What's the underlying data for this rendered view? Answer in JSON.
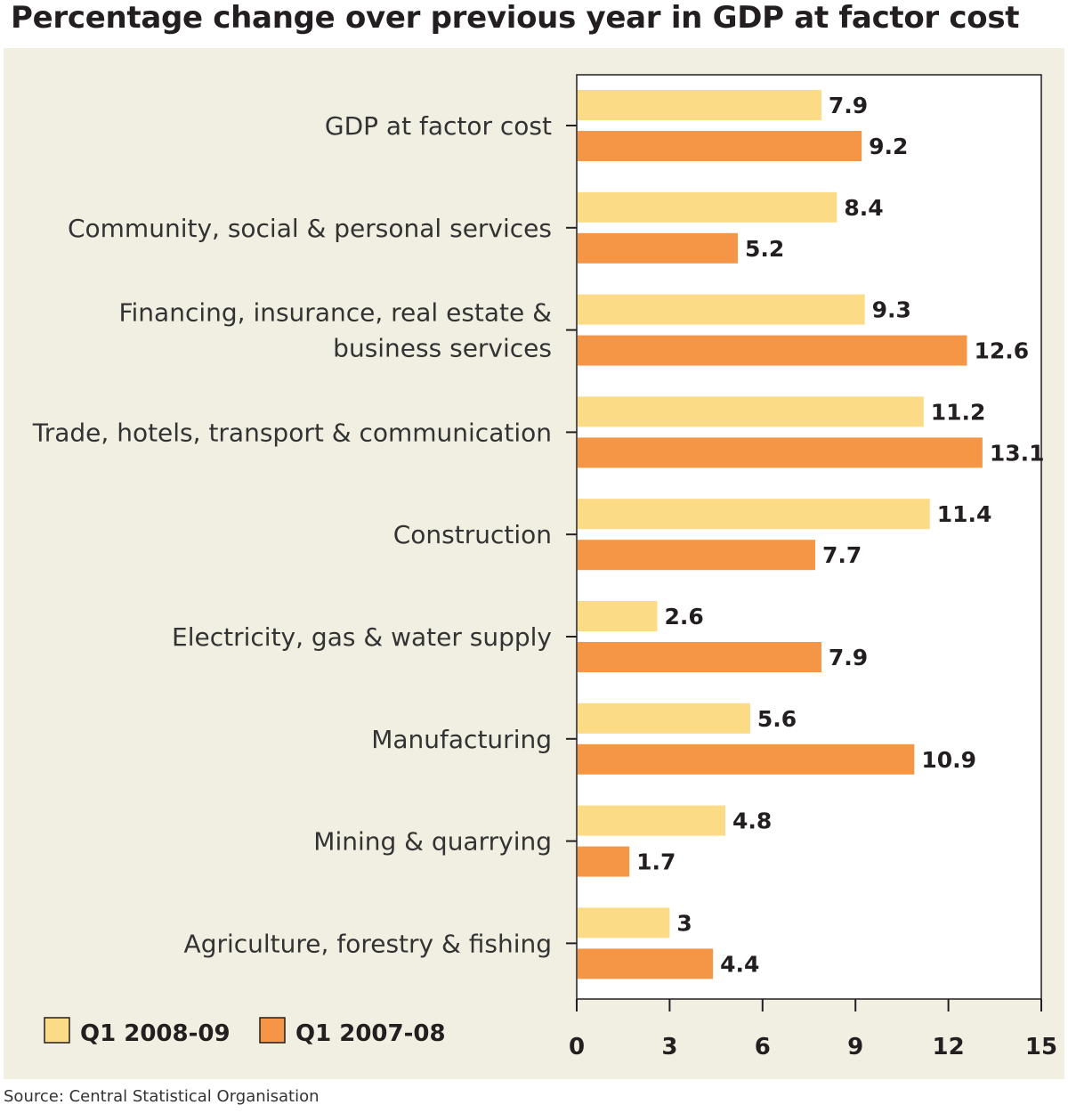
{
  "title": "Percentage change over previous year in GDP at factor cost",
  "source": "Source: Central Statistical Organisation",
  "colors": {
    "q1_2008_09": "#fbdb86",
    "q1_2007_08": "#f59546"
  },
  "chart_data": {
    "type": "bar",
    "orientation": "horizontal",
    "title": "Percentage change over previous year in GDP at factor cost",
    "categories": [
      [
        "GDP at factor cost"
      ],
      [
        "Community, social & personal services"
      ],
      [
        "Financing, insurance, real estate &",
        "business services"
      ],
      [
        "Trade, hotels, transport & communication"
      ],
      [
        "Construction"
      ],
      [
        "Electricity, gas & water supply"
      ],
      [
        "Manufacturing"
      ],
      [
        "Mining & quarrying"
      ],
      [
        "Agriculture, forestry & fishing"
      ]
    ],
    "series": [
      {
        "name": "Q1 2008-09",
        "values": [
          7.9,
          8.4,
          9.3,
          11.2,
          11.4,
          2.6,
          5.6,
          4.8,
          3
        ],
        "labels": [
          "7.9",
          "8.4",
          "9.3",
          "11.2",
          "11.4",
          "2.6",
          "5.6",
          "4.8",
          "3"
        ]
      },
      {
        "name": "Q1 2007-08",
        "values": [
          9.2,
          5.2,
          12.6,
          13.1,
          7.7,
          7.9,
          10.9,
          1.7,
          4.4
        ],
        "labels": [
          "9.2",
          "5.2",
          "12.6",
          "13.1",
          "7.7",
          "7.9",
          "10.9",
          "1.7",
          "4.4"
        ]
      }
    ],
    "xlim": [
      0,
      15
    ],
    "xticks": [
      0,
      3,
      6,
      9,
      12,
      15
    ],
    "xtick_labels": [
      "0",
      "3",
      "6",
      "9",
      "12",
      "15"
    ],
    "grid": false,
    "legend_position": "bottom-left"
  }
}
